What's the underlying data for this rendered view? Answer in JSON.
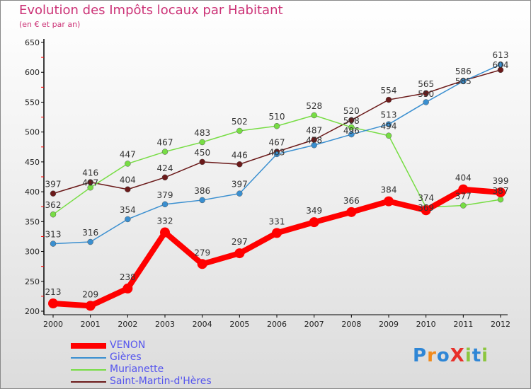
{
  "title": "Evolution des Impôts locaux par Habitant",
  "subtitle": "(en € et par an)",
  "logo": "ProXiti",
  "chart_data": {
    "type": "line",
    "title": "Evolution des Impôts locaux par Habitant",
    "subtitle": "(en € et par an)",
    "xlabel": "",
    "ylabel": "",
    "x": [
      2000,
      2001,
      2002,
      2003,
      2004,
      2005,
      2006,
      2007,
      2008,
      2009,
      2010,
      2011,
      2012
    ],
    "ylim": [
      200,
      650
    ],
    "yticks": [
      200,
      250,
      300,
      350,
      400,
      450,
      500,
      550,
      600,
      650
    ],
    "legend_position": "bottom-left",
    "series": [
      {
        "name": "VENON",
        "color": "#ff0000",
        "values": [
          213,
          209,
          238,
          332,
          279,
          297,
          331,
          349,
          366,
          384,
          369,
          404,
          399
        ]
      },
      {
        "name": "Gières",
        "color": "#3a8fd0",
        "values": [
          313,
          316,
          354,
          379,
          386,
          397,
          463,
          478,
          496,
          513,
          550,
          585,
          613
        ]
      },
      {
        "name": "Murianette",
        "color": "#77dd44",
        "values": [
          362,
          407,
          447,
          467,
          483,
          502,
          510,
          528,
          508,
          494,
          374,
          377,
          387
        ]
      },
      {
        "name": "Saint-Martin-d'Hères",
        "color": "#6b1a1a",
        "values": [
          397,
          416,
          404,
          424,
          450,
          446,
          467,
          487,
          520,
          554,
          565,
          586,
          604
        ]
      }
    ]
  }
}
